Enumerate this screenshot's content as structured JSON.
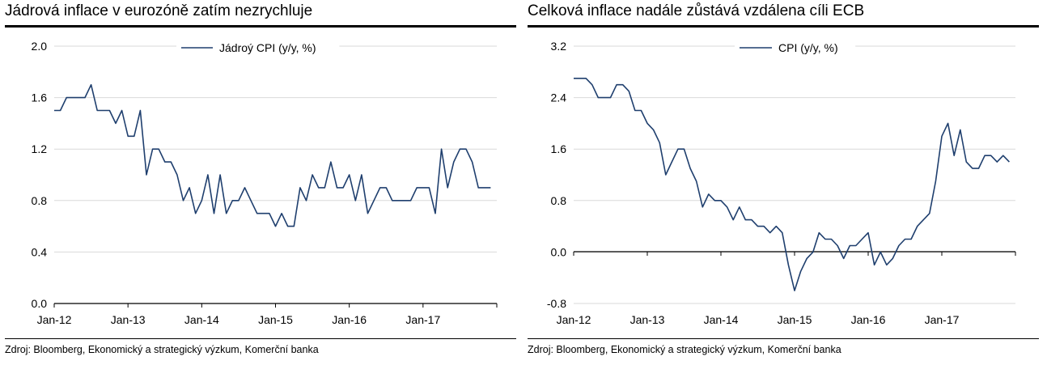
{
  "charts": [
    {
      "title": "Jádrová inflace v eurozóně zatím nezrychluje",
      "source": "Zdroj: Bloomberg, Ekonomický a strategický výzkum, Komerční banka",
      "chart_data": {
        "type": "line",
        "title": "Jádrová inflace v eurozóně zatím nezrychluje",
        "xlabel": "",
        "ylabel": "",
        "x_ticks": [
          "Jan-12",
          "Jan-13",
          "Jan-14",
          "Jan-15",
          "Jan-16",
          "Jan-17"
        ],
        "y_ticks": [
          "0.0",
          "0.4",
          "0.8",
          "1.2",
          "1.6",
          "2.0"
        ],
        "ylim": [
          0,
          2.0
        ],
        "x_start": "2012-01",
        "grid": "horizontal",
        "legend_position": "top",
        "series": [
          {
            "name": "Jádroý CPI (y/y, %)",
            "color": "#1f3f6e",
            "values": [
              1.5,
              1.5,
              1.6,
              1.6,
              1.6,
              1.6,
              1.7,
              1.5,
              1.5,
              1.5,
              1.4,
              1.5,
              1.3,
              1.3,
              1.5,
              1.0,
              1.2,
              1.2,
              1.1,
              1.1,
              1.0,
              0.8,
              0.9,
              0.7,
              0.8,
              1.0,
              0.7,
              1.0,
              0.7,
              0.8,
              0.8,
              0.9,
              0.8,
              0.7,
              0.7,
              0.7,
              0.6,
              0.7,
              0.6,
              0.6,
              0.9,
              0.8,
              1.0,
              0.9,
              0.9,
              1.1,
              0.9,
              0.9,
              1.0,
              0.8,
              1.0,
              0.7,
              0.8,
              0.9,
              0.9,
              0.8,
              0.8,
              0.8,
              0.8,
              0.9,
              0.9,
              0.9,
              0.7,
              1.2,
              0.9,
              1.1,
              1.2,
              1.2,
              1.1,
              0.9,
              0.9,
              0.9
            ]
          }
        ]
      }
    },
    {
      "title": "Celková inflace nadále zůstává vzdálena cíli ECB",
      "source": "Zdroj: Bloomberg, Ekonomický a strategický výzkum, Komerční banka",
      "chart_data": {
        "type": "line",
        "title": "Celková inflace nadále zůstává vzdálena cíli ECB",
        "xlabel": "",
        "ylabel": "",
        "x_ticks": [
          "Jan-12",
          "Jan-13",
          "Jan-14",
          "Jan-15",
          "Jan-16",
          "Jan-17"
        ],
        "y_ticks": [
          "-0.8",
          "0.0",
          "0.8",
          "1.6",
          "2.4",
          "3.2"
        ],
        "ylim": [
          -0.8,
          3.2
        ],
        "x_start": "2012-01",
        "grid": "horizontal",
        "legend_position": "top",
        "series": [
          {
            "name": "CPI (y/y, %)",
            "color": "#1f3f6e",
            "values": [
              2.7,
              2.7,
              2.7,
              2.6,
              2.4,
              2.4,
              2.4,
              2.6,
              2.6,
              2.5,
              2.2,
              2.2,
              2.0,
              1.9,
              1.7,
              1.2,
              1.4,
              1.6,
              1.6,
              1.3,
              1.1,
              0.7,
              0.9,
              0.8,
              0.8,
              0.7,
              0.5,
              0.7,
              0.5,
              0.5,
              0.4,
              0.4,
              0.3,
              0.4,
              0.3,
              -0.2,
              -0.6,
              -0.3,
              -0.1,
              0.0,
              0.3,
              0.2,
              0.2,
              0.1,
              -0.1,
              0.1,
              0.1,
              0.2,
              0.3,
              -0.2,
              0.0,
              -0.2,
              -0.1,
              0.1,
              0.2,
              0.2,
              0.4,
              0.5,
              0.6,
              1.1,
              1.8,
              2.0,
              1.5,
              1.9,
              1.4,
              1.3,
              1.3,
              1.5,
              1.5,
              1.4,
              1.5,
              1.4
            ]
          }
        ]
      }
    }
  ]
}
